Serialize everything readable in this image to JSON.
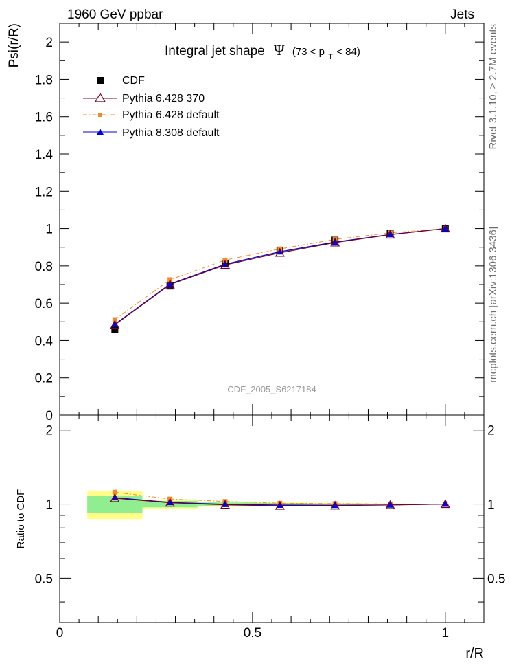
{
  "header": {
    "left": "1960 GeV ppbar",
    "right": "Jets"
  },
  "side_labels": {
    "rivet": "Rivet 3.1.10, ≥ 2.7M events",
    "mcplots": "mcplots.cern.ch [arXiv:1306.3436]"
  },
  "watermark": "CDF_2005_S6217184",
  "colors": {
    "cdf": "#000000",
    "py6_370": "#7a0020",
    "py6_default": "#f0882e",
    "py8_default": "#0000e0",
    "band_inner": "#90ee90",
    "band_outer": "#ffff88"
  },
  "chart_data": [
    {
      "type": "line",
      "title_main": "Integral jet shape",
      "title_symbol": "Ψ",
      "title_range": "(73 < p",
      "title_sub": "T",
      "title_range_end": " < 84)",
      "ylabel": "Psi(r/R)",
      "xlim": [
        0,
        1.1
      ],
      "ylim": [
        0,
        2.1
      ],
      "y_ticks": [
        "0",
        "0.2",
        "0.4",
        "0.6",
        "0.8",
        "1",
        "1.2",
        "1.4",
        "1.6",
        "1.8",
        "2"
      ],
      "legend_position": "top-left",
      "x": [
        0.143,
        0.286,
        0.429,
        0.571,
        0.714,
        0.857,
        1.0
      ],
      "series": [
        {
          "name": "CDF",
          "marker": "filled-square",
          "values": [
            0.458,
            0.692,
            0.811,
            0.884,
            0.938,
            0.976,
            1.0
          ]
        },
        {
          "name": "Pythia 6.428 370",
          "marker": "open-triangle",
          "values": [
            0.484,
            0.7,
            0.805,
            0.87,
            0.925,
            0.967,
            1.0
          ]
        },
        {
          "name": "Pythia 6.428 default",
          "marker": "filled-square-small",
          "line": "dash-dot",
          "values": [
            0.512,
            0.726,
            0.831,
            0.891,
            0.942,
            0.977,
            1.0
          ]
        },
        {
          "name": "Pythia 8.308 default",
          "marker": "filled-triangle",
          "values": [
            0.487,
            0.703,
            0.809,
            0.876,
            0.928,
            0.968,
            1.0
          ]
        }
      ]
    },
    {
      "type": "line",
      "ylabel": "Ratio to CDF",
      "xlabel": "r/R",
      "xlim": [
        0,
        1.1
      ],
      "ylim": [
        0.33,
        2.3
      ],
      "y_ticks": [
        "0.5",
        "1",
        "2"
      ],
      "x_ticks": [
        "0",
        "0.5",
        "1"
      ],
      "x": [
        0.143,
        0.286,
        0.429,
        0.571,
        0.714,
        0.857,
        1.0
      ],
      "bins": [
        [
          0.0715,
          0.2145
        ],
        [
          0.2145,
          0.3575
        ],
        [
          0.3575,
          0.5005
        ],
        [
          0.5005,
          0.6435
        ],
        [
          0.6435,
          0.7865
        ],
        [
          0.7865,
          0.9295
        ],
        [
          0.9295,
          1.07
        ]
      ],
      "band_inner": [
        [
          0.92,
          1.08
        ],
        [
          0.97,
          1.03
        ],
        [
          0.985,
          1.015
        ],
        [
          0.99,
          1.01
        ],
        [
          0.995,
          1.005
        ],
        [
          0.997,
          1.003
        ],
        [
          1.0,
          1.0
        ]
      ],
      "band_outer": [
        [
          0.87,
          1.13
        ],
        [
          0.955,
          1.045
        ],
        [
          0.975,
          1.025
        ],
        [
          0.985,
          1.015
        ],
        [
          0.99,
          1.01
        ],
        [
          0.995,
          1.005
        ],
        [
          1.0,
          1.0
        ]
      ],
      "series": [
        {
          "name": "Pythia 6.428 370",
          "values": [
            1.057,
            1.012,
            0.993,
            0.984,
            0.986,
            0.991,
            1.0
          ]
        },
        {
          "name": "Pythia 6.428 default",
          "values": [
            1.118,
            1.049,
            1.025,
            1.008,
            1.004,
            1.001,
            1.0
          ]
        },
        {
          "name": "Pythia 8.308 default",
          "values": [
            1.063,
            1.016,
            0.998,
            0.991,
            0.989,
            0.992,
            1.0
          ]
        }
      ]
    }
  ]
}
